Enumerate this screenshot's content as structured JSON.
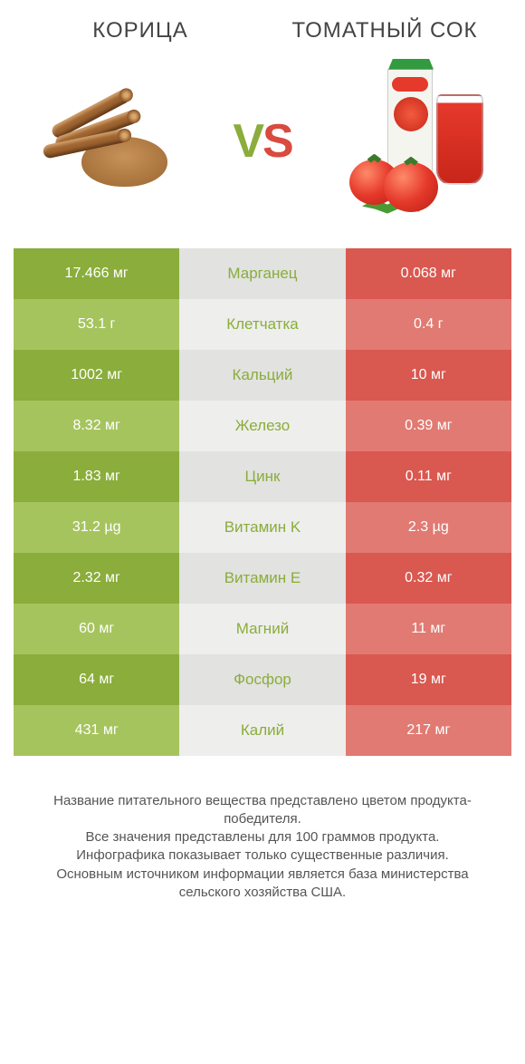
{
  "comparison": {
    "left_title": "КОРИЦА",
    "right_title": "ТОМАТНЫЙ СОК",
    "vs_label_v": "V",
    "vs_label_s": "S",
    "colors": {
      "left_dark": "#8aad3b",
      "left_light": "#a6c45e",
      "mid_dark": "#e2e2e0",
      "mid_light": "#eeeeec",
      "right_dark": "#d9584f",
      "right_light": "#e17a72",
      "mid_text_winner_left": "#8aad3b",
      "mid_text_winner_right": "#d9584f"
    },
    "rows": [
      {
        "left": "17.466 мг",
        "label": "Марганец",
        "right": "0.068 мг",
        "winner": "left"
      },
      {
        "left": "53.1 г",
        "label": "Клетчатка",
        "right": "0.4 г",
        "winner": "left"
      },
      {
        "left": "1002 мг",
        "label": "Кальций",
        "right": "10 мг",
        "winner": "left"
      },
      {
        "left": "8.32 мг",
        "label": "Железо",
        "right": "0.39 мг",
        "winner": "left"
      },
      {
        "left": "1.83 мг",
        "label": "Цинк",
        "right": "0.11 мг",
        "winner": "left"
      },
      {
        "left": "31.2 µg",
        "label": "Витамин K",
        "right": "2.3 µg",
        "winner": "left"
      },
      {
        "left": "2.32 мг",
        "label": "Витамин E",
        "right": "0.32 мг",
        "winner": "left"
      },
      {
        "left": "60 мг",
        "label": "Магний",
        "right": "11 мг",
        "winner": "left"
      },
      {
        "left": "64 мг",
        "label": "Фосфор",
        "right": "19 мг",
        "winner": "left"
      },
      {
        "left": "431 мг",
        "label": "Калий",
        "right": "217 мг",
        "winner": "left"
      }
    ]
  },
  "footer": {
    "line1": "Название питательного вещества представлено цветом продукта-победителя.",
    "line2": "Все значения представлены для 100 граммов продукта.",
    "line3": "Инфографика показывает только существенные различия.",
    "line4": "Основным источником информации является база министерства сельского хозяйства США."
  }
}
